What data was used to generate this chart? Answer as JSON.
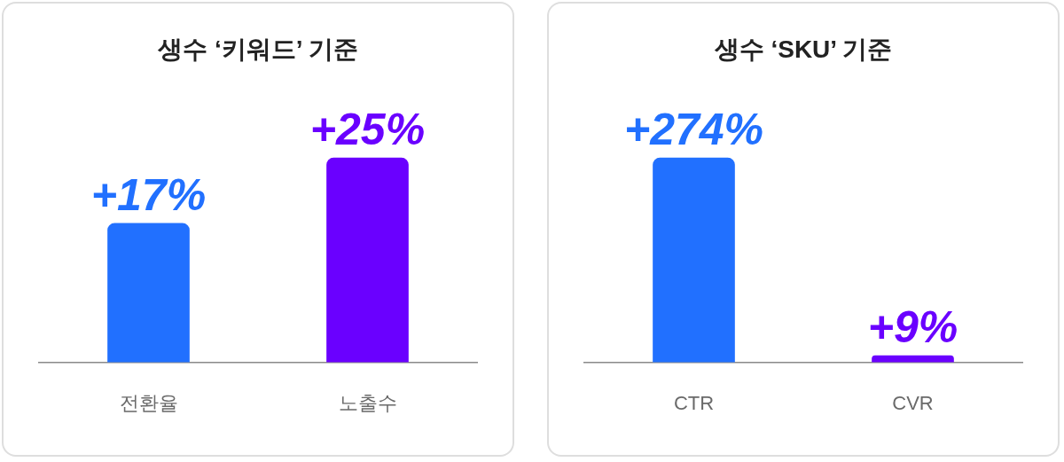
{
  "chart_data": [
    {
      "type": "bar",
      "title": "생수 ‘키워드’ 기준",
      "categories": [
        "전환율",
        "노출수"
      ],
      "values": [
        17,
        25
      ],
      "colors": [
        "#2170ff",
        "#6a00ff"
      ],
      "value_labels": [
        "+17%",
        "+25%"
      ],
      "grid": false,
      "legend": false
    },
    {
      "type": "bar",
      "title": "생수 ‘SKU’ 기준",
      "categories": [
        "CTR",
        "CVR"
      ],
      "values": [
        274,
        9
      ],
      "colors": [
        "#2170ff",
        "#6a00ff"
      ],
      "value_labels": [
        "+274%",
        "+9%"
      ],
      "grid": false,
      "legend": false
    }
  ]
}
